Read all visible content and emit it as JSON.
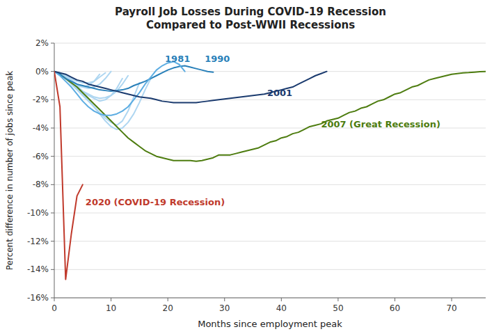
{
  "chart_data": {
    "type": "line",
    "title": "Payroll Job Losses During COVID-19 Recession\nCompared to Post-WWII Recessions",
    "xlabel": "Months since employment peak",
    "ylabel": "Percent difference in number of jobs since peak",
    "xlim": [
      0,
      76
    ],
    "ylim": [
      -16,
      2
    ],
    "xticks": [
      0,
      10,
      20,
      30,
      40,
      50,
      60,
      70
    ],
    "yticks": [
      {
        "value": 2,
        "label": "2%"
      },
      {
        "value": 0,
        "label": "0%"
      },
      {
        "value": -2,
        "label": "-2%"
      },
      {
        "value": -4,
        "label": "-4%"
      },
      {
        "value": -6,
        "label": "-6%"
      },
      {
        "value": -8,
        "label": "-8%"
      },
      {
        "value": -10,
        "label": "-10%"
      },
      {
        "value": -12,
        "label": "-12%"
      },
      {
        "value": -14,
        "label": "-14%"
      },
      {
        "value": -16,
        "label": "-16%"
      }
    ],
    "grid": true,
    "series": [
      {
        "color": "#aed6f1",
        "x": [
          0,
          1,
          2,
          3,
          4,
          5,
          6,
          7,
          8,
          9,
          10,
          11,
          12,
          13
        ],
        "values": [
          0,
          -0.2,
          -0.5,
          -0.8,
          -1.1,
          -1.4,
          -1.6,
          -1.8,
          -1.9,
          -1.85,
          -1.7,
          -1.4,
          -0.9,
          -0.3
        ]
      },
      {
        "color": "#aed6f1",
        "x": [
          0,
          1,
          2,
          3,
          4,
          5,
          6,
          7,
          8,
          9,
          10
        ],
        "values": [
          0,
          -0.1,
          -0.3,
          -0.6,
          -0.9,
          -1.1,
          -1.2,
          -1.1,
          -0.9,
          -0.5,
          0.0
        ]
      },
      {
        "color": "#aed6f1",
        "x": [
          0,
          1,
          2,
          3,
          4,
          5,
          6,
          7,
          8,
          9,
          10,
          11,
          12
        ],
        "values": [
          0,
          -0.2,
          -0.4,
          -0.7,
          -1.0,
          -1.4,
          -1.7,
          -1.9,
          -2.1,
          -2.0,
          -1.7,
          -1.2,
          -0.5
        ]
      },
      {
        "color": "#aed6f1",
        "x": [
          0,
          1,
          2,
          3,
          4,
          5,
          6,
          7,
          8,
          9,
          10,
          11,
          12,
          13,
          14,
          15
        ],
        "values": [
          0,
          -0.2,
          -0.5,
          -0.9,
          -1.3,
          -1.7,
          -2.1,
          -2.5,
          -2.9,
          -3.3,
          -3.6,
          -3.8,
          -3.5,
          -2.8,
          -1.8,
          -0.8
        ]
      },
      {
        "color": "#aed6f1",
        "x": [
          0,
          1,
          2,
          3,
          4,
          5,
          6,
          7,
          8,
          9,
          10,
          11,
          12,
          13,
          14,
          15,
          16,
          17
        ],
        "values": [
          0,
          -0.2,
          -0.5,
          -0.8,
          -1.2,
          -1.6,
          -2.0,
          -2.5,
          -3.0,
          -3.5,
          -3.9,
          -4.1,
          -4.0,
          -3.6,
          -3.0,
          -2.2,
          -1.3,
          -0.5
        ]
      },
      {
        "color": "#aed6f1",
        "x": [
          0,
          1,
          2,
          3,
          4,
          5,
          6,
          7,
          8
        ],
        "values": [
          0,
          -0.2,
          -0.5,
          -0.8,
          -1.0,
          -1.1,
          -1.0,
          -0.7,
          -0.2
        ]
      },
      {
        "color": "#aed6f1",
        "x": [
          0,
          1,
          2,
          3,
          4,
          5,
          6,
          7,
          8,
          9
        ],
        "values": [
          0,
          -0.15,
          -0.3,
          -0.5,
          -0.7,
          -0.8,
          -0.8,
          -0.7,
          -0.4,
          -0.1
        ]
      },
      {
        "color": "#4d7c0f",
        "x": [
          0,
          1,
          2,
          3,
          4,
          5,
          6,
          7,
          8,
          9,
          10,
          11,
          12,
          13,
          14,
          15,
          16,
          17,
          18,
          19,
          20,
          21,
          22,
          23,
          24,
          25,
          26,
          27,
          28,
          29,
          30,
          31,
          32,
          33,
          34,
          35,
          36,
          37,
          38,
          39,
          40,
          41,
          42,
          43,
          44,
          45,
          46,
          47,
          48,
          49,
          50,
          51,
          52,
          53,
          54,
          55,
          56,
          57,
          58,
          59,
          60,
          61,
          62,
          63,
          64,
          65,
          66,
          67,
          68,
          69,
          70,
          71,
          72,
          73,
          74,
          75,
          76
        ],
        "values": [
          0,
          -0.2,
          -0.5,
          -0.8,
          -1.1,
          -1.5,
          -1.9,
          -2.3,
          -2.7,
          -3.1,
          -3.5,
          -3.9,
          -4.3,
          -4.7,
          -5.0,
          -5.3,
          -5.6,
          -5.8,
          -6.0,
          -6.1,
          -6.2,
          -6.3,
          -6.3,
          -6.3,
          -6.3,
          -6.35,
          -6.3,
          -6.2,
          -6.1,
          -5.9,
          -5.9,
          -5.9,
          -5.8,
          -5.7,
          -5.6,
          -5.5,
          -5.4,
          -5.2,
          -5.0,
          -4.9,
          -4.7,
          -4.6,
          -4.4,
          -4.3,
          -4.1,
          -3.9,
          -3.8,
          -3.7,
          -3.5,
          -3.4,
          -3.3,
          -3.1,
          -2.9,
          -2.8,
          -2.6,
          -2.5,
          -2.3,
          -2.1,
          -2.0,
          -1.8,
          -1.6,
          -1.5,
          -1.3,
          -1.1,
          -1.0,
          -0.8,
          -0.6,
          -0.5,
          -0.4,
          -0.3,
          -0.2,
          -0.15,
          -0.1,
          -0.08,
          -0.05,
          -0.02,
          0.0
        ]
      },
      {
        "color": "#2980b9",
        "x": [
          0,
          1,
          2,
          3,
          4,
          5,
          6,
          7,
          8,
          9,
          10,
          11,
          12,
          13,
          14,
          15,
          16,
          17,
          18,
          19,
          20,
          21,
          22,
          23,
          24,
          25,
          26,
          27,
          28
        ],
        "values": [
          0,
          -0.2,
          -0.5,
          -0.7,
          -0.9,
          -1.0,
          -1.1,
          -1.2,
          -1.3,
          -1.35,
          -1.4,
          -1.35,
          -1.3,
          -1.2,
          -1.0,
          -0.85,
          -0.7,
          -0.5,
          -0.3,
          -0.1,
          0.1,
          0.25,
          0.35,
          0.4,
          0.3,
          0.2,
          0.1,
          0.0,
          -0.05
        ]
      },
      {
        "color": "#5dade2",
        "x": [
          0,
          1,
          2,
          3,
          4,
          5,
          6,
          7,
          8,
          9,
          10,
          11,
          12,
          13,
          14,
          15,
          16,
          17,
          18,
          19,
          20,
          21,
          22,
          23
        ],
        "values": [
          0,
          -0.3,
          -0.7,
          -1.1,
          -1.6,
          -2.1,
          -2.5,
          -2.8,
          -3.0,
          -3.1,
          -3.1,
          -3.0,
          -2.8,
          -2.5,
          -2.0,
          -1.5,
          -0.9,
          -0.4,
          0.1,
          0.4,
          0.6,
          0.7,
          0.5,
          0.0
        ]
      },
      {
        "color": "#1a3a6e",
        "x": [
          0,
          1,
          2,
          3,
          4,
          5,
          6,
          7,
          8,
          9,
          10,
          11,
          12,
          13,
          14,
          15,
          16,
          17,
          18,
          19,
          20,
          21,
          22,
          23,
          24,
          25,
          26,
          27,
          28,
          29,
          30,
          31,
          32,
          33,
          34,
          35,
          36,
          37,
          38,
          39,
          40,
          41,
          42,
          43,
          44,
          45,
          46,
          47,
          48
        ],
        "values": [
          0,
          -0.1,
          -0.2,
          -0.4,
          -0.6,
          -0.7,
          -0.9,
          -1.0,
          -1.1,
          -1.2,
          -1.3,
          -1.4,
          -1.5,
          -1.6,
          -1.7,
          -1.8,
          -1.85,
          -1.9,
          -2.0,
          -2.1,
          -2.15,
          -2.2,
          -2.2,
          -2.2,
          -2.2,
          -2.2,
          -2.15,
          -2.1,
          -2.05,
          -2.0,
          -1.95,
          -1.9,
          -1.85,
          -1.8,
          -1.75,
          -1.7,
          -1.65,
          -1.6,
          -1.5,
          -1.4,
          -1.3,
          -1.2,
          -1.1,
          -0.9,
          -0.7,
          -0.5,
          -0.3,
          -0.15,
          0.0
        ]
      },
      {
        "color": "#c0392b",
        "x": [
          0,
          1,
          2,
          3,
          4,
          5
        ],
        "values": [
          0,
          -2.5,
          -14.7,
          -11.5,
          -8.8,
          -8.0
        ]
      }
    ],
    "annotations": [
      {
        "text": "1981",
        "x": 19.5,
        "y": 0.85,
        "color": "#2980b9"
      },
      {
        "text": "1990",
        "x": 26.5,
        "y": 0.85,
        "color": "#2980b9"
      },
      {
        "text": "2001",
        "x": 37.5,
        "y": -1.55,
        "color": "#1a3a6e"
      },
      {
        "text": "2007 (Great Recession)",
        "x": 47.0,
        "y": -3.8,
        "color": "#4d7c0f"
      },
      {
        "text": "2020 (COVID-19 Recession)",
        "x": 5.5,
        "y": -9.3,
        "color": "#c0392b"
      }
    ]
  }
}
